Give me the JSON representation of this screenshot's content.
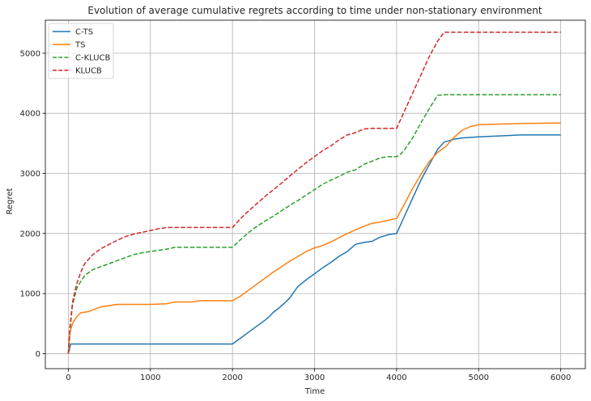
{
  "chart_data": {
    "type": "line",
    "title": "Evolution of average cumulative regrets according to time under non-stationary environment",
    "xlabel": "Time",
    "ylabel": "Regret",
    "xlim": [
      -280,
      6300
    ],
    "ylim": [
      -250,
      5550
    ],
    "xticks": [
      0,
      1000,
      2000,
      3000,
      4000,
      5000,
      6000
    ],
    "yticks": [
      0,
      1000,
      2000,
      3000,
      4000,
      5000
    ],
    "grid": true,
    "legend_position": "top-left",
    "series": [
      {
        "name": "C-TS",
        "color": "#1f77b4",
        "dash": "solid",
        "points": [
          [
            0,
            0
          ],
          [
            30,
            160
          ],
          [
            2000,
            160
          ],
          [
            2100,
            260
          ],
          [
            2200,
            360
          ],
          [
            2300,
            460
          ],
          [
            2400,
            560
          ],
          [
            2450,
            620
          ],
          [
            2500,
            690
          ],
          [
            2550,
            740
          ],
          [
            2600,
            800
          ],
          [
            2650,
            860
          ],
          [
            2700,
            930
          ],
          [
            2750,
            1030
          ],
          [
            2800,
            1120
          ],
          [
            2900,
            1230
          ],
          [
            3000,
            1330
          ],
          [
            3100,
            1430
          ],
          [
            3200,
            1520
          ],
          [
            3300,
            1620
          ],
          [
            3400,
            1700
          ],
          [
            3500,
            1820
          ],
          [
            3600,
            1850
          ],
          [
            3700,
            1870
          ],
          [
            3800,
            1940
          ],
          [
            3900,
            1980
          ],
          [
            4000,
            2000
          ],
          [
            4100,
            2300
          ],
          [
            4200,
            2600
          ],
          [
            4300,
            2900
          ],
          [
            4400,
            3150
          ],
          [
            4500,
            3400
          ],
          [
            4580,
            3520
          ],
          [
            4700,
            3570
          ],
          [
            4800,
            3590
          ],
          [
            5000,
            3610
          ],
          [
            5200,
            3620
          ],
          [
            5500,
            3640
          ],
          [
            6000,
            3640
          ]
        ]
      },
      {
        "name": "TS",
        "color": "#ff7f0e",
        "dash": "solid",
        "points": [
          [
            0,
            0
          ],
          [
            20,
            350
          ],
          [
            50,
            500
          ],
          [
            100,
            610
          ],
          [
            150,
            680
          ],
          [
            250,
            700
          ],
          [
            300,
            730
          ],
          [
            400,
            780
          ],
          [
            500,
            800
          ],
          [
            600,
            820
          ],
          [
            800,
            820
          ],
          [
            1000,
            820
          ],
          [
            1200,
            830
          ],
          [
            1300,
            860
          ],
          [
            1500,
            860
          ],
          [
            1600,
            880
          ],
          [
            2000,
            880
          ],
          [
            2100,
            960
          ],
          [
            2200,
            1060
          ],
          [
            2300,
            1160
          ],
          [
            2400,
            1260
          ],
          [
            2500,
            1360
          ],
          [
            2600,
            1450
          ],
          [
            2700,
            1540
          ],
          [
            2800,
            1620
          ],
          [
            2900,
            1700
          ],
          [
            3000,
            1760
          ],
          [
            3100,
            1800
          ],
          [
            3200,
            1860
          ],
          [
            3300,
            1930
          ],
          [
            3400,
            2000
          ],
          [
            3500,
            2060
          ],
          [
            3600,
            2120
          ],
          [
            3700,
            2170
          ],
          [
            3800,
            2190
          ],
          [
            3900,
            2220
          ],
          [
            4000,
            2250
          ],
          [
            4100,
            2500
          ],
          [
            4200,
            2760
          ],
          [
            4300,
            2990
          ],
          [
            4400,
            3200
          ],
          [
            4500,
            3350
          ],
          [
            4600,
            3450
          ],
          [
            4700,
            3600
          ],
          [
            4800,
            3720
          ],
          [
            4900,
            3780
          ],
          [
            5000,
            3810
          ],
          [
            5200,
            3820
          ],
          [
            5500,
            3830
          ],
          [
            6000,
            3840
          ]
        ]
      },
      {
        "name": "C-KLUCB",
        "color": "#2ca02c",
        "dash": "dashed",
        "points": [
          [
            0,
            0
          ],
          [
            20,
            400
          ],
          [
            50,
            800
          ],
          [
            100,
            1080
          ],
          [
            150,
            1200
          ],
          [
            200,
            1300
          ],
          [
            250,
            1350
          ],
          [
            300,
            1400
          ],
          [
            400,
            1450
          ],
          [
            500,
            1500
          ],
          [
            600,
            1550
          ],
          [
            700,
            1600
          ],
          [
            800,
            1650
          ],
          [
            900,
            1680
          ],
          [
            1000,
            1700
          ],
          [
            1100,
            1720
          ],
          [
            1200,
            1740
          ],
          [
            1300,
            1770
          ],
          [
            1500,
            1770
          ],
          [
            2000,
            1770
          ],
          [
            2100,
            1900
          ],
          [
            2200,
            2020
          ],
          [
            2300,
            2120
          ],
          [
            2400,
            2210
          ],
          [
            2500,
            2290
          ],
          [
            2600,
            2380
          ],
          [
            2700,
            2470
          ],
          [
            2800,
            2550
          ],
          [
            2900,
            2640
          ],
          [
            3000,
            2730
          ],
          [
            3100,
            2820
          ],
          [
            3200,
            2890
          ],
          [
            3300,
            2950
          ],
          [
            3400,
            3020
          ],
          [
            3500,
            3060
          ],
          [
            3600,
            3150
          ],
          [
            3700,
            3200
          ],
          [
            3800,
            3260
          ],
          [
            3900,
            3280
          ],
          [
            4000,
            3280
          ],
          [
            4050,
            3320
          ],
          [
            4100,
            3400
          ],
          [
            4200,
            3600
          ],
          [
            4300,
            3850
          ],
          [
            4400,
            4080
          ],
          [
            4500,
            4300
          ],
          [
            4600,
            4310
          ],
          [
            6000,
            4310
          ]
        ]
      },
      {
        "name": "KLUCB",
        "color": "#d62728",
        "dash": "dashed",
        "points": [
          [
            0,
            0
          ],
          [
            20,
            450
          ],
          [
            50,
            850
          ],
          [
            100,
            1150
          ],
          [
            150,
            1350
          ],
          [
            200,
            1500
          ],
          [
            300,
            1650
          ],
          [
            400,
            1750
          ],
          [
            500,
            1820
          ],
          [
            600,
            1890
          ],
          [
            700,
            1950
          ],
          [
            800,
            1990
          ],
          [
            900,
            2020
          ],
          [
            1000,
            2050
          ],
          [
            1100,
            2080
          ],
          [
            1200,
            2100
          ],
          [
            1500,
            2100
          ],
          [
            2000,
            2100
          ],
          [
            2100,
            2250
          ],
          [
            2200,
            2380
          ],
          [
            2300,
            2500
          ],
          [
            2400,
            2620
          ],
          [
            2500,
            2730
          ],
          [
            2600,
            2840
          ],
          [
            2700,
            2960
          ],
          [
            2800,
            3070
          ],
          [
            2900,
            3180
          ],
          [
            3000,
            3280
          ],
          [
            3100,
            3380
          ],
          [
            3200,
            3460
          ],
          [
            3300,
            3560
          ],
          [
            3400,
            3640
          ],
          [
            3500,
            3680
          ],
          [
            3600,
            3740
          ],
          [
            3700,
            3750
          ],
          [
            4000,
            3750
          ],
          [
            4100,
            4050
          ],
          [
            4200,
            4350
          ],
          [
            4300,
            4650
          ],
          [
            4400,
            4950
          ],
          [
            4500,
            5200
          ],
          [
            4580,
            5350
          ],
          [
            6000,
            5350
          ]
        ]
      }
    ]
  }
}
